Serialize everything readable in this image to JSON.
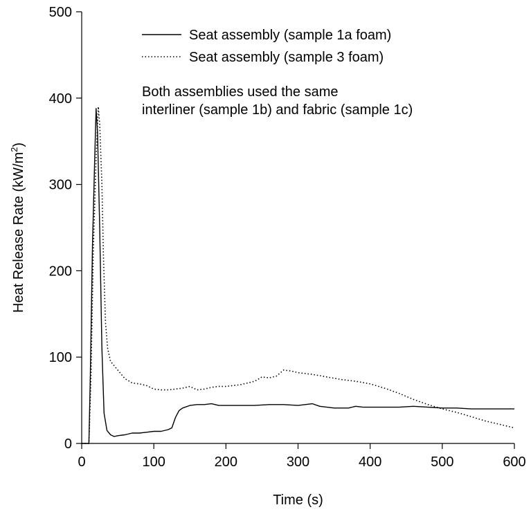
{
  "chart_data": {
    "type": "line",
    "title": "",
    "xlabel": "Time (s)",
    "ylabel_main": "Heat Release Rate (kW/m",
    "ylabel_sup": "2",
    "ylabel_close": ")",
    "xlim": [
      0,
      600
    ],
    "ylim": [
      0,
      500
    ],
    "xticks": [
      0,
      100,
      200,
      300,
      400,
      500,
      600
    ],
    "yticks": [
      0,
      100,
      200,
      300,
      400,
      500
    ],
    "grid": false,
    "legend_position": "top-right",
    "series": [
      {
        "name": "Seat assembly (sample 1a foam)",
        "style": "solid",
        "color": "#000000",
        "x": [
          0,
          5,
          10,
          12,
          15,
          18,
          20,
          22,
          25,
          28,
          31,
          35,
          40,
          45,
          50,
          60,
          70,
          80,
          90,
          100,
          110,
          120,
          125,
          130,
          135,
          140,
          150,
          160,
          170,
          180,
          190,
          200,
          220,
          240,
          260,
          280,
          300,
          310,
          320,
          330,
          340,
          350,
          360,
          370,
          380,
          390,
          400,
          420,
          440,
          460,
          480,
          500,
          520,
          540,
          560,
          580,
          600
        ],
        "y": [
          0,
          0,
          0,
          80,
          230,
          330,
          388,
          360,
          250,
          110,
          35,
          15,
          10,
          8,
          9,
          10,
          12,
          12,
          13,
          14,
          14,
          16,
          18,
          30,
          38,
          41,
          44,
          45,
          45,
          46,
          44,
          44,
          44,
          44,
          45,
          45,
          44,
          45,
          46,
          43,
          42,
          41,
          41,
          41,
          43,
          42,
          42,
          42,
          42,
          43,
          42,
          41,
          41,
          40,
          40,
          40,
          40
        ]
      },
      {
        "name": "Seat assembly (sample 3 foam)",
        "style": "dotted",
        "color": "#000000",
        "x": [
          0,
          5,
          10,
          13,
          16,
          20,
          23,
          25,
          28,
          30,
          33,
          36,
          40,
          50,
          60,
          70,
          80,
          90,
          100,
          110,
          120,
          130,
          140,
          150,
          160,
          170,
          180,
          190,
          200,
          220,
          240,
          250,
          260,
          270,
          280,
          290,
          300,
          320,
          340,
          360,
          380,
          400,
          420,
          440,
          460,
          480,
          500,
          520,
          540,
          560,
          580,
          600
        ],
        "y": [
          0,
          0,
          0,
          80,
          220,
          330,
          390,
          370,
          300,
          220,
          140,
          110,
          95,
          85,
          75,
          70,
          69,
          67,
          63,
          62,
          62,
          63,
          64,
          66,
          62,
          63,
          65,
          66,
          66,
          68,
          72,
          77,
          76,
          78,
          85,
          84,
          82,
          80,
          77,
          74,
          72,
          69,
          64,
          58,
          51,
          45,
          40,
          36,
          31,
          26,
          22,
          18
        ]
      }
    ],
    "annotation_lines": [
      "Both assemblies used the same",
      "interliner (sample 1b) and fabric (sample 1c)"
    ]
  }
}
